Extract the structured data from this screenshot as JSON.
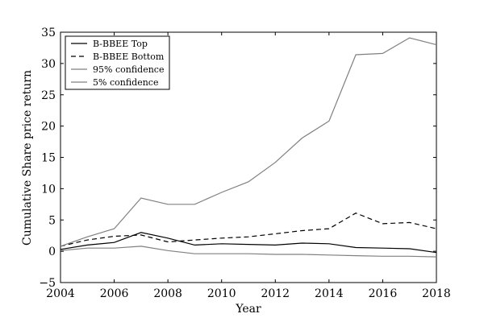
{
  "chart_data": {
    "type": "line",
    "title": "",
    "xlabel": "Year",
    "ylabel": "Cumulative Share price return",
    "xlim": [
      2004,
      2018
    ],
    "ylim": [
      -5,
      35
    ],
    "x_ticks": [
      2004,
      2006,
      2008,
      2010,
      2012,
      2014,
      2016,
      2018
    ],
    "y_ticks": [
      -5,
      0,
      5,
      10,
      15,
      20,
      25,
      30,
      35
    ],
    "grid": false,
    "legend_position": "upper-left",
    "x": [
      2004,
      2005,
      2006,
      2007,
      2008,
      2009,
      2010,
      2011,
      2012,
      2013,
      2014,
      2015,
      2016,
      2017,
      2018
    ],
    "series": [
      {
        "name": "B-BBEE Top",
        "color": "#000000",
        "dash": "solid",
        "values": [
          0.3,
          1.0,
          1.4,
          3.0,
          2.1,
          1.0,
          1.2,
          1.1,
          1.0,
          1.3,
          1.2,
          0.6,
          0.5,
          0.4,
          -0.2
        ]
      },
      {
        "name": "B-BBEE Bottom",
        "color": "#000000",
        "dash": "dashed",
        "values": [
          0.8,
          1.8,
          2.4,
          2.6,
          1.5,
          1.8,
          2.1,
          2.3,
          2.8,
          3.3,
          3.6,
          6.1,
          4.4,
          4.6,
          3.6
        ]
      },
      {
        "name": "95% confidence",
        "color": "#808080",
        "dash": "solid",
        "values": [
          0.8,
          2.3,
          3.6,
          8.5,
          7.5,
          7.5,
          9.4,
          11.1,
          14.2,
          18.1,
          20.8,
          31.4,
          31.6,
          34.1,
          33.0
        ]
      },
      {
        "name": "5% confidence",
        "color": "#808080",
        "dash": "solid",
        "values": [
          0.1,
          0.5,
          0.5,
          0.8,
          0.1,
          -0.4,
          -0.4,
          -0.4,
          -0.5,
          -0.5,
          -0.6,
          -0.7,
          -0.8,
          -0.8,
          -0.9
        ]
      }
    ]
  }
}
